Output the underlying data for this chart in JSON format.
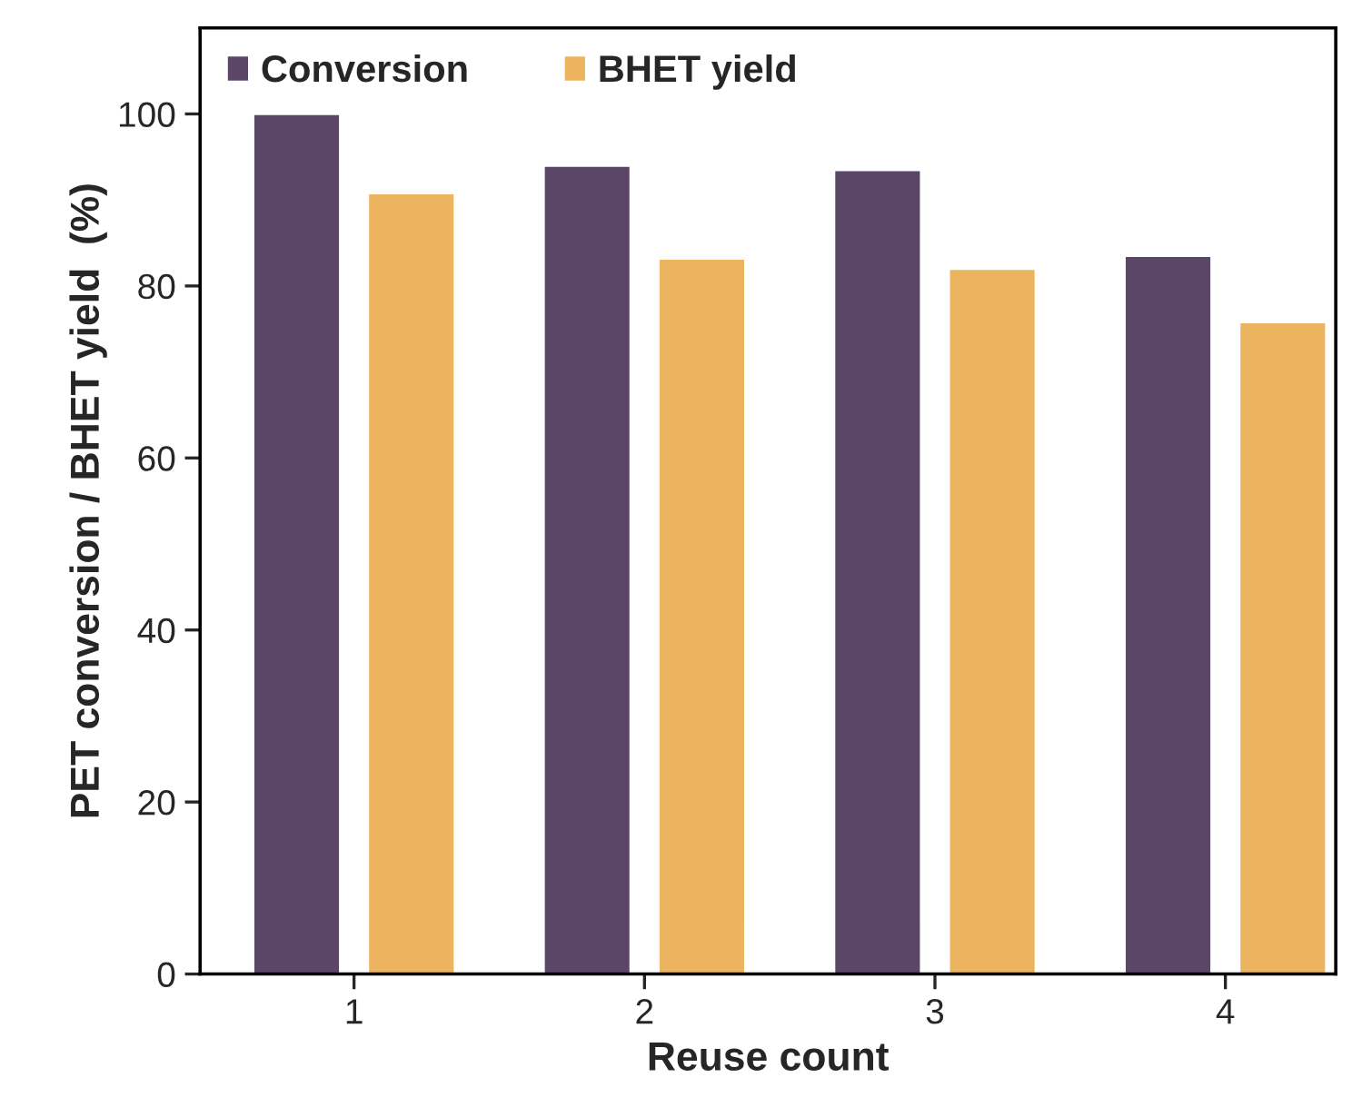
{
  "chart_data": {
    "type": "bar",
    "xlabel": "Reuse count",
    "ylabel": "PET conversion / BHET yield  (%)",
    "categories": [
      "1",
      "2",
      "3",
      "4"
    ],
    "series": [
      {
        "name": "Conversion",
        "color": "#5b4668",
        "values": [
          100,
          94,
          93.5,
          83.5
        ]
      },
      {
        "name": "BHET yield",
        "color": "#edb460",
        "values": [
          90.8,
          83.2,
          82,
          75.8
        ]
      }
    ],
    "ylim": [
      0,
      110
    ],
    "yticks": [
      0,
      20,
      40,
      60,
      80,
      100
    ],
    "grid": false,
    "legend": "top left"
  }
}
